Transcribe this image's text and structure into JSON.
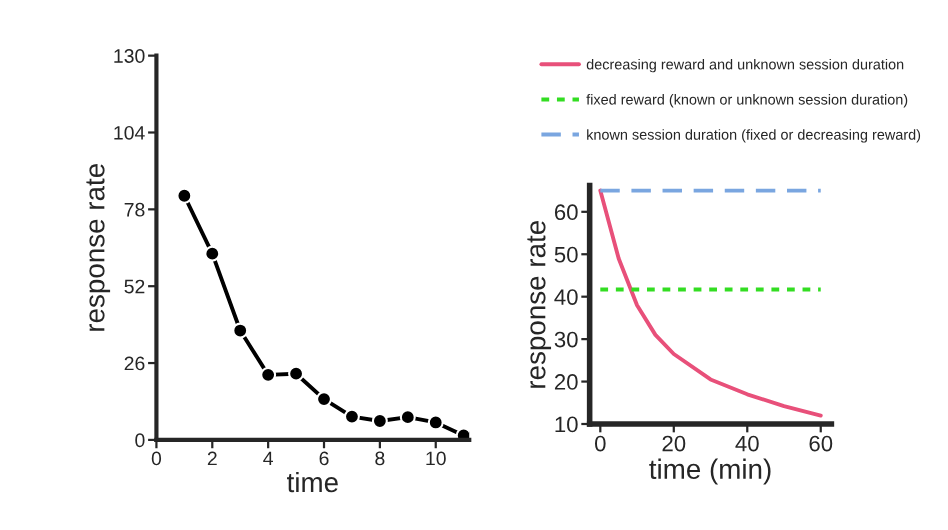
{
  "chart_data": [
    {
      "type": "line",
      "xlabel": "time",
      "ylabel": "response rate",
      "x": [
        1,
        2,
        3,
        4,
        5,
        6,
        7,
        8,
        9,
        10,
        11
      ],
      "xlim": [
        0,
        11.2
      ],
      "xticks": [
        0,
        2,
        4,
        6,
        8,
        10
      ],
      "ylim": [
        0,
        130
      ],
      "yticks": [
        0,
        26,
        52,
        78,
        104,
        130
      ],
      "marker": "circle",
      "grid": false,
      "legend": false,
      "series": [
        {
          "color": "#000000",
          "values": [
            82.6,
            63,
            37,
            22,
            22.4,
            13.8,
            7.9,
            6.4,
            7.7,
            5.9,
            1.5
          ]
        }
      ]
    },
    {
      "type": "line",
      "xlabel": "time (min)",
      "ylabel": "response rate",
      "xlim": [
        -2.9,
        62.9
      ],
      "xticks": [
        0,
        20,
        40,
        60
      ],
      "ylim": [
        10,
        66.2
      ],
      "yticks": [
        10,
        20,
        30,
        40,
        50,
        60
      ],
      "grid": false,
      "legend": "top",
      "series": [
        {
          "name": "decreasing reward and unknown session duration",
          "color": "#e8507a",
          "line_style": "solid",
          "x": [
            0,
            5,
            10,
            15,
            20,
            30,
            40,
            50,
            60
          ],
          "values": [
            65,
            49,
            38,
            31,
            26.5,
            20.5,
            17,
            14.2,
            12
          ]
        },
        {
          "name": "fixed reward (known or unknown session duration)",
          "color": "#33dd22",
          "line_style": "dotted",
          "x": [
            0,
            60
          ],
          "values": [
            41.7,
            41.7
          ]
        },
        {
          "name": "known session duration (fixed or decreasing reward)",
          "color": "#7aa6e0",
          "line_style": "dashed",
          "x": [
            0,
            60
          ],
          "values": [
            65,
            65
          ]
        }
      ]
    }
  ]
}
